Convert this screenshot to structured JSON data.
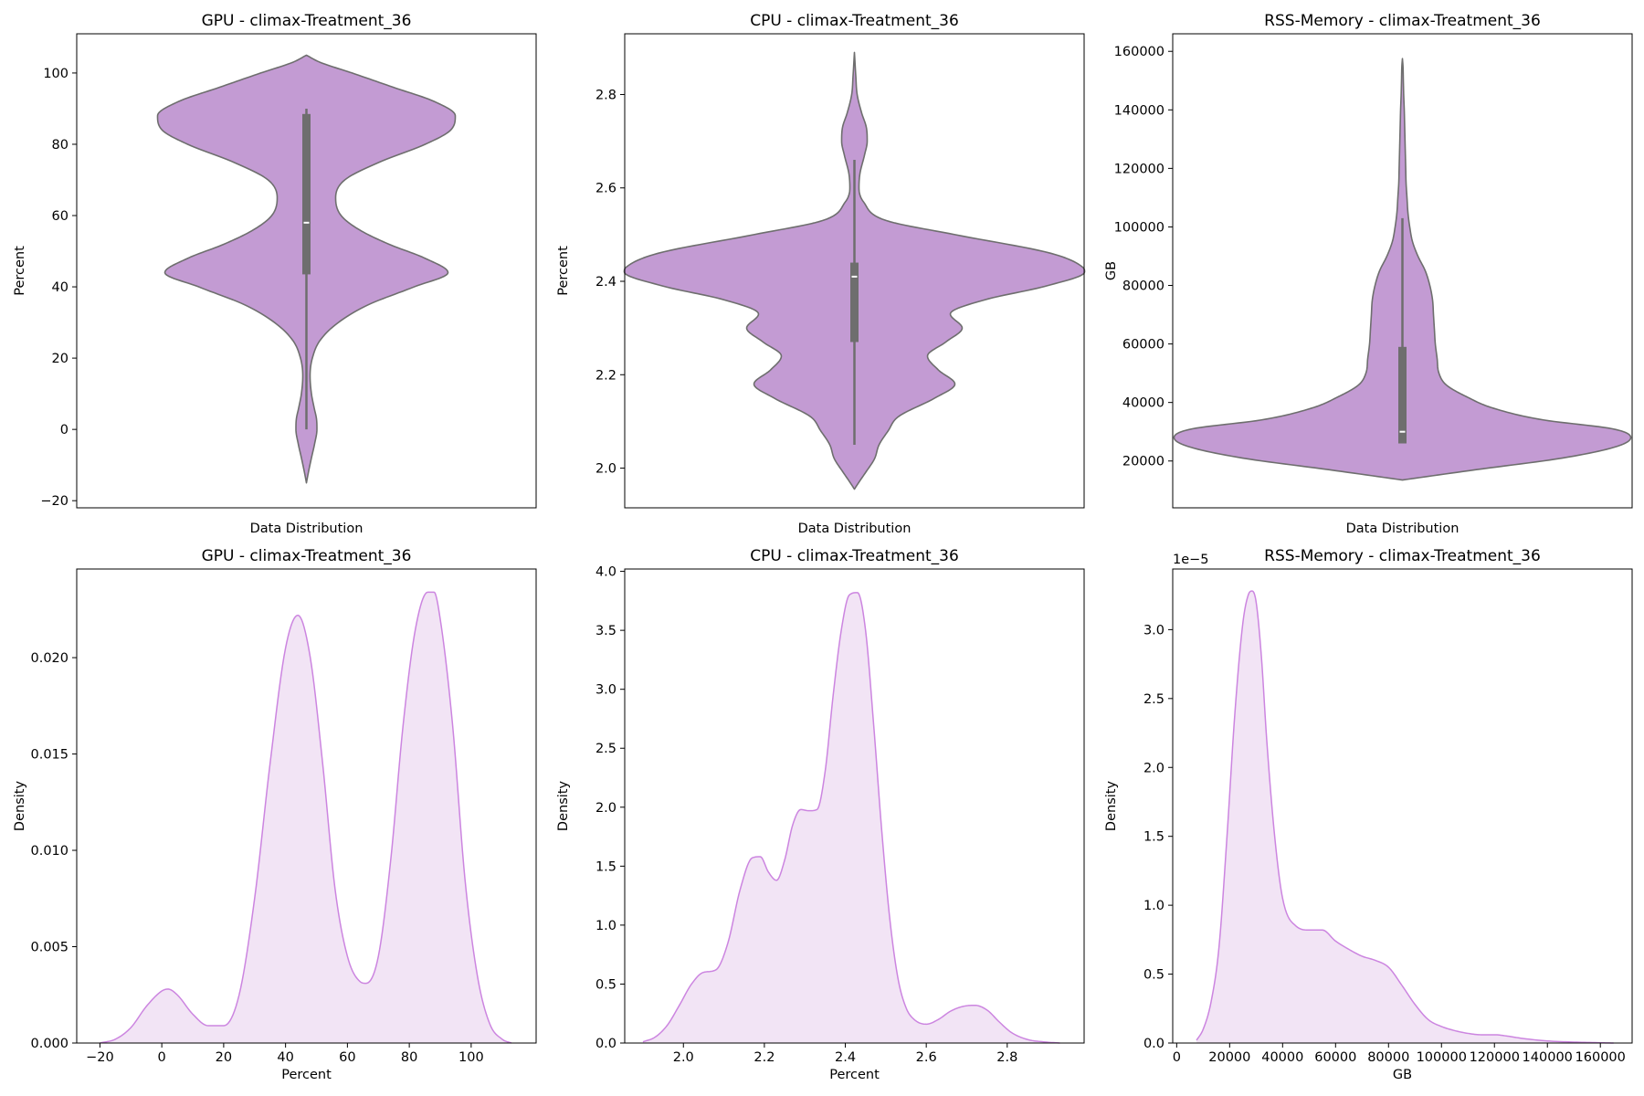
{
  "colors": {
    "violin_fill": "#c39bd3",
    "violin_edge": "#6e6e6e",
    "box": "#6e6e6e",
    "median": "#ffffff",
    "kde_line": "#cc85e0",
    "kde_fill": "#f2e4f5"
  },
  "chart_data": [
    {
      "type": "violin",
      "title": "GPU - climax-Treatment_36",
      "xlabel": "Data Distribution",
      "ylabel": "Percent",
      "ylim": [
        -22,
        111
      ],
      "yticks": [
        -20,
        0,
        20,
        40,
        60,
        80,
        100
      ],
      "ytick_labels": [
        "−20",
        "0",
        "20",
        "40",
        "60",
        "80",
        "100"
      ],
      "density": {
        "y": [
          -15,
          -12,
          -8,
          -4,
          0,
          3,
          6,
          10,
          15,
          20,
          25,
          30,
          35,
          40,
          44,
          48,
          52,
          56,
          60,
          65,
          70,
          75,
          80,
          84,
          88,
          92,
          96,
          100,
          103,
          105
        ],
        "w": [
          0,
          2.2,
          5.5,
          9,
          11.5,
          11,
          8.5,
          5.5,
          4,
          6.5,
          15,
          35,
          68,
          118,
          155,
          130,
          90,
          58,
          38,
          32,
          42,
          80,
          130,
          158,
          163,
          140,
          95,
          50,
          15,
          0
        ]
      },
      "box": {
        "whisker_low": 0,
        "q1": 43.5,
        "median": 58,
        "q3": 88.5,
        "whisker_high": 90
      }
    },
    {
      "type": "violin",
      "title": "CPU - climax-Treatment_36",
      "xlabel": "Data Distribution",
      "ylabel": "Percent",
      "ylim": [
        1.915,
        2.93
      ],
      "yticks": [
        2.0,
        2.2,
        2.4,
        2.6,
        2.8
      ],
      "ytick_labels": [
        "2.0",
        "2.2",
        "2.4",
        "2.6",
        "2.8"
      ],
      "density": {
        "y": [
          1.955,
          1.97,
          1.99,
          2.02,
          2.05,
          2.08,
          2.11,
          2.15,
          2.18,
          2.21,
          2.24,
          2.27,
          2.3,
          2.33,
          2.36,
          2.39,
          2.42,
          2.43,
          2.46,
          2.5,
          2.53,
          2.57,
          2.6,
          2.63,
          2.67,
          2.7,
          2.73,
          2.76,
          2.8,
          2.84,
          2.89
        ],
        "w": [
          0,
          5,
          12,
          22,
          27,
          37,
          48,
          88,
          110,
          92,
          80,
          100,
          118,
          105,
          142,
          210,
          252,
          250,
          215,
          110,
          35,
          10,
          5,
          6,
          11,
          14,
          13,
          8,
          3,
          1.5,
          0
        ]
      },
      "box": {
        "whisker_low": 2.05,
        "q1": 2.27,
        "median": 2.41,
        "q3": 2.44,
        "whisker_high": 2.66
      }
    },
    {
      "type": "violin",
      "title": "RSS-Memory - climax-Treatment_36",
      "xlabel": "Data Distribution",
      "ylabel": "GB",
      "ylim": [
        4000,
        166000
      ],
      "yticks": [
        20000,
        40000,
        60000,
        80000,
        100000,
        120000,
        140000,
        160000
      ],
      "ytick_labels": [
        "20000",
        "40000",
        "60000",
        "80000",
        "100000",
        "120000",
        "140000",
        "160000"
      ],
      "density": {
        "y": [
          13500,
          17000,
          21000,
          25000,
          28000,
          31000,
          34000,
          38000,
          42000,
          46000,
          50000,
          55000,
          60000,
          65000,
          70000,
          75000,
          80000,
          85000,
          90000,
          95000,
          100000,
          105000,
          110000,
          115000,
          120000,
          125000,
          130000,
          135000,
          140000,
          145000,
          150000,
          155000,
          157500
        ],
        "w": [
          0,
          80,
          175,
          235,
          250,
          230,
          155,
          100,
          70,
          48,
          40,
          38,
          36,
          35,
          34,
          33,
          30,
          25,
          17,
          11,
          8,
          6,
          5,
          4,
          3.6,
          3.2,
          2.8,
          2.4,
          2,
          1.4,
          1,
          0.6,
          0
        ]
      },
      "box": {
        "whisker_low": 26000,
        "q1": 26000,
        "median": 30000,
        "q3": 59000,
        "whisker_high": 103000
      }
    },
    {
      "type": "area",
      "title": "GPU - climax-Treatment_36",
      "xlabel": "Percent",
      "ylabel": "Density",
      "xlim": [
        -27.5,
        121
      ],
      "ylim": [
        0,
        0.0246
      ],
      "xticks": [
        -20,
        0,
        20,
        40,
        60,
        80,
        100
      ],
      "xtick_labels": [
        "−20",
        "0",
        "20",
        "40",
        "60",
        "80",
        "100"
      ],
      "yticks": [
        0,
        0.005,
        0.01,
        0.015,
        0.02
      ],
      "ytick_labels": [
        "0.000",
        "0.005",
        "0.010",
        "0.015",
        "0.020"
      ],
      "series": [
        {
          "x": [
            -20,
            -15,
            -10,
            -5,
            0,
            2,
            5,
            10,
            15,
            20,
            25,
            30,
            35,
            40,
            44,
            48,
            52,
            56,
            60,
            64,
            66,
            70,
            74,
            78,
            82,
            86,
            88,
            90,
            94,
            98,
            102,
            106,
            110,
            113
          ],
          "y": [
            0,
            0.0002,
            0.0008,
            0.0019,
            0.0027,
            0.0028,
            0.0025,
            0.0015,
            0.0009,
            0.0009,
            0.0025,
            0.0075,
            0.0145,
            0.0205,
            0.0222,
            0.02,
            0.0145,
            0.008,
            0.0045,
            0.0032,
            0.0031,
            0.0045,
            0.0095,
            0.0165,
            0.0215,
            0.0234,
            0.0234,
            0.022,
            0.0165,
            0.0085,
            0.0035,
            0.001,
            0.0002,
            0
          ]
        }
      ]
    },
    {
      "type": "area",
      "title": "CPU - climax-Treatment_36",
      "xlabel": "Percent",
      "ylabel": "Density",
      "xlim": [
        1.855,
        2.99
      ],
      "ylim": [
        0,
        4.02
      ],
      "xticks": [
        2.0,
        2.2,
        2.4,
        2.6,
        2.8
      ],
      "xtick_labels": [
        "2.0",
        "2.2",
        "2.4",
        "2.6",
        "2.8"
      ],
      "yticks": [
        0,
        0.5,
        1.0,
        1.5,
        2.0,
        2.5,
        3.0,
        3.5,
        4.0
      ],
      "ytick_labels": [
        "0.0",
        "0.5",
        "1.0",
        "1.5",
        "2.0",
        "2.5",
        "3.0",
        "3.5",
        "4.0"
      ],
      "series": [
        {
          "x": [
            1.9,
            1.93,
            1.96,
            1.99,
            2.02,
            2.05,
            2.08,
            2.11,
            2.14,
            2.17,
            2.19,
            2.21,
            2.23,
            2.25,
            2.27,
            2.29,
            2.31,
            2.33,
            2.35,
            2.37,
            2.39,
            2.41,
            2.43,
            2.45,
            2.47,
            2.49,
            2.51,
            2.53,
            2.55,
            2.57,
            2.6,
            2.63,
            2.66,
            2.69,
            2.72,
            2.75,
            2.78,
            2.81,
            2.85,
            2.89,
            2.93
          ],
          "y": [
            0.01,
            0.05,
            0.15,
            0.32,
            0.5,
            0.6,
            0.62,
            0.85,
            1.3,
            1.57,
            1.58,
            1.45,
            1.38,
            1.55,
            1.85,
            1.98,
            1.97,
            1.98,
            2.3,
            2.95,
            3.5,
            3.8,
            3.82,
            3.5,
            2.7,
            1.8,
            1.05,
            0.55,
            0.3,
            0.2,
            0.16,
            0.2,
            0.27,
            0.31,
            0.32,
            0.28,
            0.18,
            0.09,
            0.03,
            0.01,
            0
          ]
        }
      ]
    },
    {
      "type": "area",
      "title": "RSS-Memory - climax-Treatment_36",
      "xlabel": "GB",
      "ylabel": "Density",
      "offset_label": "1e−5",
      "xlim": [
        -1500,
        172000
      ],
      "ylim": [
        0,
        3.44
      ],
      "xticks": [
        0,
        20000,
        40000,
        60000,
        80000,
        100000,
        120000,
        140000,
        160000
      ],
      "xtick_labels": [
        "0",
        "20000",
        "40000",
        "60000",
        "80000",
        "100000",
        "120000",
        "140000",
        "160000"
      ],
      "yticks": [
        0,
        0.5,
        1.0,
        1.5,
        2.0,
        2.5,
        3.0
      ],
      "ytick_labels": [
        "0.0",
        "0.5",
        "1.0",
        "1.5",
        "2.0",
        "2.5",
        "3.0"
      ],
      "series": [
        {
          "x": [
            7500,
            10000,
            13000,
            16000,
            19000,
            22000,
            25000,
            27000,
            28500,
            30000,
            32000,
            34000,
            37000,
            40000,
            45000,
            50000,
            55000,
            60000,
            65000,
            70000,
            75000,
            80000,
            85000,
            90000,
            95000,
            100000,
            105000,
            110000,
            115000,
            120000,
            125000,
            130000,
            140000,
            150000,
            160000,
            165000
          ],
          "y": [
            0.02,
            0.1,
            0.3,
            0.7,
            1.5,
            2.4,
            3.05,
            3.25,
            3.28,
            3.2,
            2.8,
            2.2,
            1.5,
            1.05,
            0.85,
            0.82,
            0.82,
            0.74,
            0.68,
            0.63,
            0.6,
            0.55,
            0.42,
            0.28,
            0.17,
            0.12,
            0.09,
            0.07,
            0.06,
            0.06,
            0.05,
            0.035,
            0.015,
            0.007,
            0.002,
            0
          ]
        }
      ]
    }
  ]
}
